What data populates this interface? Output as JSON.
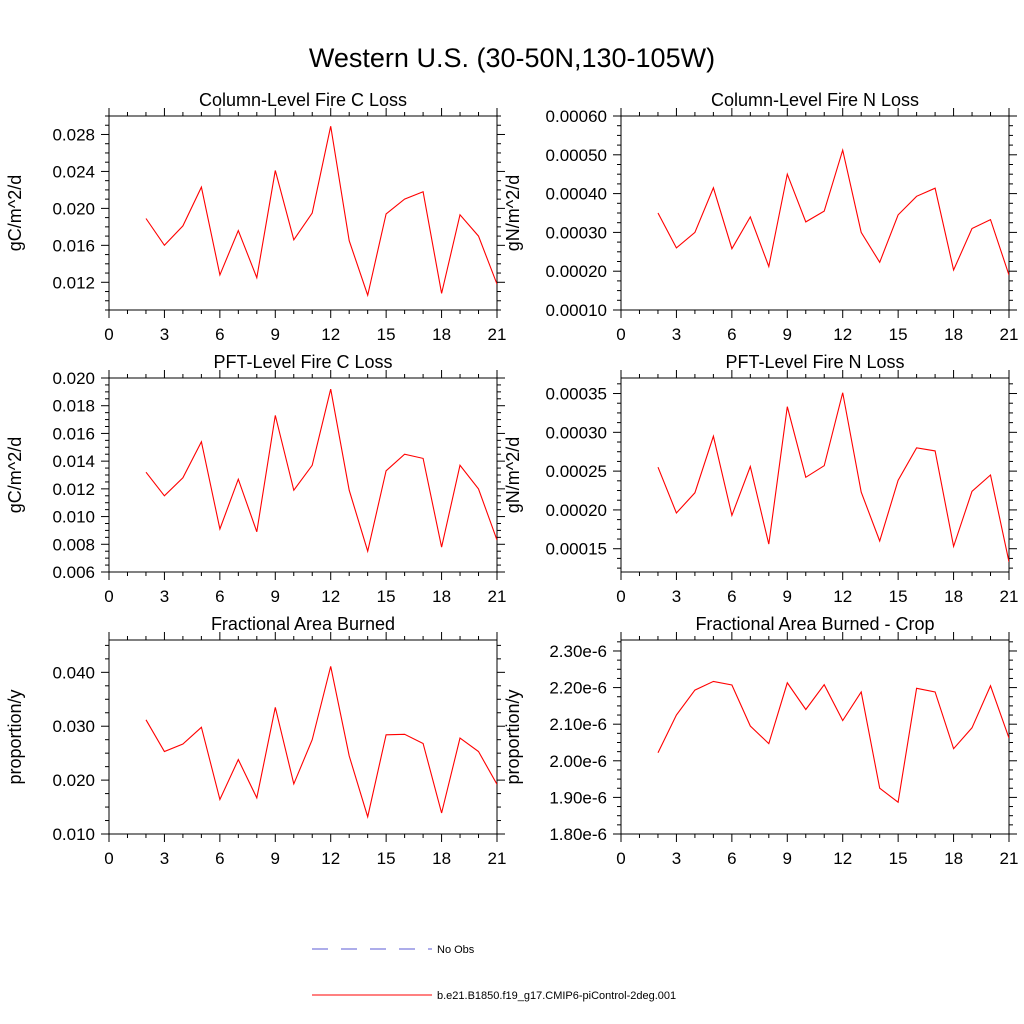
{
  "figure": {
    "title": "Western U.S. (30-50N,130-105W)",
    "legend": [
      {
        "label": "No Obs",
        "color": "#5b5bd6",
        "style": "dashed"
      },
      {
        "label": "b.e21.B1850.f19_g17.CMIP6-piControl-2deg.001",
        "color": "#ff0000",
        "style": "solid"
      }
    ]
  },
  "chart_data": [
    {
      "type": "line",
      "title": "Column-Level Fire C Loss",
      "xlabel": "",
      "ylabel": "gC/m^2/d",
      "xlim": [
        0,
        21
      ],
      "ylim": [
        0.009,
        0.03
      ],
      "xticks": [
        0,
        3,
        6,
        9,
        12,
        15,
        18,
        21
      ],
      "yticks": [
        0.012,
        0.016,
        0.02,
        0.024,
        0.028
      ],
      "ytick_labels": [
        "0.012",
        "0.016",
        "0.020",
        "0.024",
        "0.028"
      ],
      "ylabel_offset": 88,
      "series": [
        {
          "name": "b.e21.B1850.f19_g17.CMIP6-piControl-2deg.001",
          "color": "#ff0000",
          "x": [
            2,
            3,
            4,
            5,
            6,
            7,
            8,
            9,
            10,
            11,
            12,
            13,
            14,
            15,
            16,
            17,
            18,
            19,
            20,
            21
          ],
          "y": [
            0.0189,
            0.016,
            0.0181,
            0.0223,
            0.0128,
            0.0176,
            0.0125,
            0.0241,
            0.0166,
            0.0195,
            0.0289,
            0.0165,
            0.0106,
            0.0194,
            0.021,
            0.0218,
            0.0108,
            0.0193,
            0.017,
            0.0118
          ]
        }
      ]
    },
    {
      "type": "line",
      "title": "Column-Level Fire N Loss",
      "xlabel": "",
      "ylabel": "gN/m^2/d",
      "xlim": [
        0,
        21
      ],
      "ylim": [
        0.0001,
        0.0006
      ],
      "xticks": [
        0,
        3,
        6,
        9,
        12,
        15,
        18,
        21
      ],
      "yticks": [
        0.0001,
        0.0002,
        0.0003,
        0.0004,
        0.0005,
        0.0006
      ],
      "ytick_labels": [
        "0.00010",
        "0.00020",
        "0.00030",
        "0.00040",
        "0.00050",
        "0.00060"
      ],
      "ylabel_offset": 102,
      "series": [
        {
          "name": "b.e21.B1850.f19_g17.CMIP6-piControl-2deg.001",
          "color": "#ff0000",
          "x": [
            2,
            3,
            4,
            5,
            6,
            7,
            8,
            9,
            10,
            11,
            12,
            13,
            14,
            15,
            16,
            17,
            18,
            19,
            20,
            21
          ],
          "y": [
            0.00035,
            0.00026,
            0.0003,
            0.000415,
            0.000258,
            0.00034,
            0.000212,
            0.00045,
            0.000327,
            0.000355,
            0.000512,
            0.0003,
            0.000223,
            0.000345,
            0.000393,
            0.000414,
            0.000203,
            0.00031,
            0.000333,
            0.00019
          ]
        }
      ]
    },
    {
      "type": "line",
      "title": "PFT-Level Fire C Loss",
      "xlabel": "",
      "ylabel": "gC/m^2/d",
      "xlim": [
        0,
        21
      ],
      "ylim": [
        0.006,
        0.02
      ],
      "xticks": [
        0,
        3,
        6,
        9,
        12,
        15,
        18,
        21
      ],
      "yticks": [
        0.006,
        0.008,
        0.01,
        0.012,
        0.014,
        0.016,
        0.018,
        0.02
      ],
      "ytick_labels": [
        "0.006",
        "0.008",
        "0.010",
        "0.012",
        "0.014",
        "0.016",
        "0.018",
        "0.020"
      ],
      "ylabel_offset": 88,
      "series": [
        {
          "name": "b.e21.B1850.f19_g17.CMIP6-piControl-2deg.001",
          "color": "#ff0000",
          "x": [
            2,
            3,
            4,
            5,
            6,
            7,
            8,
            9,
            10,
            11,
            12,
            13,
            14,
            15,
            16,
            17,
            18,
            19,
            20,
            21
          ],
          "y": [
            0.0132,
            0.0115,
            0.0128,
            0.0154,
            0.0091,
            0.0127,
            0.0089,
            0.0173,
            0.0119,
            0.0137,
            0.0192,
            0.0119,
            0.0075,
            0.0133,
            0.0145,
            0.0142,
            0.0078,
            0.0137,
            0.012,
            0.0083
          ]
        }
      ]
    },
    {
      "type": "line",
      "title": "PFT-Level Fire N Loss",
      "xlabel": "",
      "ylabel": "gN/m^2/d",
      "xlim": [
        0,
        21
      ],
      "ylim": [
        0.00012,
        0.00037
      ],
      "xticks": [
        0,
        3,
        6,
        9,
        12,
        15,
        18,
        21
      ],
      "yticks": [
        0.00015,
        0.0002,
        0.00025,
        0.0003,
        0.00035
      ],
      "ytick_labels": [
        "0.00015",
        "0.00020",
        "0.00025",
        "0.00030",
        "0.00035"
      ],
      "ylabel_offset": 102,
      "series": [
        {
          "name": "b.e21.B1850.f19_g17.CMIP6-piControl-2deg.001",
          "color": "#ff0000",
          "x": [
            2,
            3,
            4,
            5,
            6,
            7,
            8,
            9,
            10,
            11,
            12,
            13,
            14,
            15,
            16,
            17,
            18,
            19,
            20,
            21
          ],
          "y": [
            0.000255,
            0.000196,
            0.000222,
            0.000295,
            0.000193,
            0.000256,
            0.000156,
            0.000333,
            0.000242,
            0.000257,
            0.000351,
            0.000223,
            0.00016,
            0.000238,
            0.00028,
            0.000276,
            0.000153,
            0.000224,
            0.000245,
            0.000133
          ]
        }
      ]
    },
    {
      "type": "line",
      "title": "Fractional Area Burned",
      "xlabel": "",
      "ylabel": "proportion/y",
      "xlim": [
        0,
        21
      ],
      "ylim": [
        0.01,
        0.046
      ],
      "xticks": [
        0,
        3,
        6,
        9,
        12,
        15,
        18,
        21
      ],
      "yticks": [
        0.01,
        0.02,
        0.03,
        0.04
      ],
      "ytick_labels": [
        "0.010",
        "0.020",
        "0.030",
        "0.040"
      ],
      "ylabel_offset": 88,
      "series": [
        {
          "name": "b.e21.B1850.f19_g17.CMIP6-piControl-2deg.001",
          "color": "#ff0000",
          "x": [
            2,
            3,
            4,
            5,
            6,
            7,
            8,
            9,
            10,
            11,
            12,
            13,
            14,
            15,
            16,
            17,
            18,
            19,
            20,
            21
          ],
          "y": [
            0.0312,
            0.0253,
            0.0267,
            0.0298,
            0.0164,
            0.0238,
            0.0167,
            0.0335,
            0.0193,
            0.0275,
            0.0411,
            0.0245,
            0.0132,
            0.0284,
            0.0285,
            0.0268,
            0.0139,
            0.0278,
            0.0253,
            0.0192
          ]
        }
      ]
    },
    {
      "type": "line",
      "title": "Fractional Area Burned - Crop",
      "xlabel": "",
      "ylabel": "proportion/y",
      "xlim": [
        0,
        21
      ],
      "ylim": [
        1.8e-06,
        2.33e-06
      ],
      "xticks": [
        0,
        3,
        6,
        9,
        12,
        15,
        18,
        21
      ],
      "yticks": [
        1.8e-06,
        1.9e-06,
        2e-06,
        2.1e-06,
        2.2e-06,
        2.3e-06
      ],
      "ytick_labels": [
        "1.80e-6",
        "1.90e-6",
        "2.00e-6",
        "2.10e-6",
        "2.20e-6",
        "2.30e-6"
      ],
      "ylabel_offset": 102,
      "series": [
        {
          "name": "b.e21.B1850.f19_g17.CMIP6-piControl-2deg.001",
          "color": "#ff0000",
          "x": [
            2,
            3,
            4,
            5,
            6,
            7,
            8,
            9,
            10,
            11,
            12,
            13,
            14,
            15,
            16,
            17,
            18,
            19,
            20,
            21
          ],
          "y": [
            2.022e-06,
            2.125e-06,
            2.193e-06,
            2.217e-06,
            2.207e-06,
            2.095e-06,
            2.047e-06,
            2.213e-06,
            2.14e-06,
            2.208e-06,
            2.11e-06,
            2.188e-06,
            1.925e-06,
            1.887e-06,
            2.198e-06,
            2.188e-06,
            2.033e-06,
            2.09e-06,
            2.205e-06,
            2.062e-06
          ]
        }
      ]
    }
  ]
}
